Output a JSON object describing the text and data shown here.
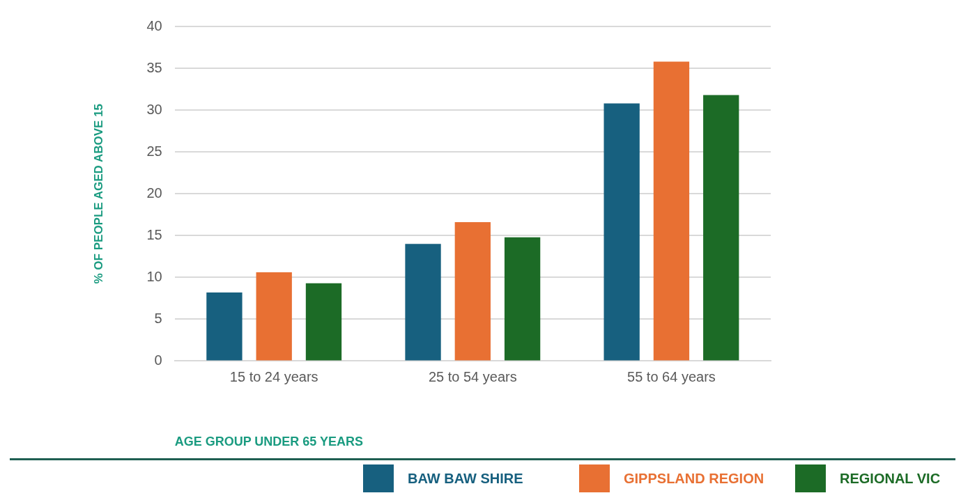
{
  "chart_data": {
    "type": "bar",
    "xlabel": "AGE GROUP UNDER 65 YEARS",
    "ylabel": "% OF PEOPLE AGED ABOVE 15",
    "categories": [
      "15 to 24 years",
      "25 to 54 years",
      "55 to 64 years"
    ],
    "series": [
      {
        "name": "BAW BAW SHIRE",
        "color": "#17607f",
        "values": [
          8.2,
          14.0,
          30.8
        ]
      },
      {
        "name": "GIPPSLAND REGION",
        "color": "#e87033",
        "values": [
          10.6,
          16.6,
          35.8
        ]
      },
      {
        "name": "REGIONAL VIC",
        "color": "#1c6b26",
        "values": [
          9.3,
          14.8,
          31.8
        ]
      }
    ],
    "ylim": [
      0,
      40
    ],
    "yticks": [
      0,
      5,
      10,
      15,
      20,
      25,
      30,
      35,
      40
    ],
    "grid": "y",
    "legend": "bottom"
  }
}
